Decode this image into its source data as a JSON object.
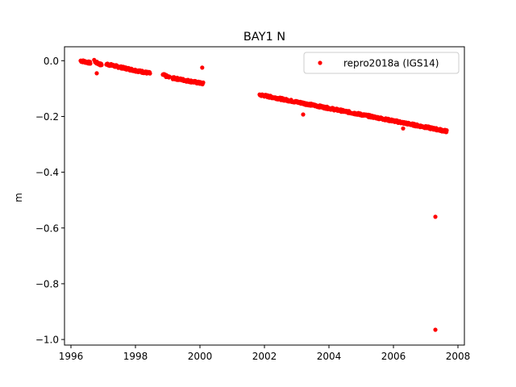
{
  "chart_data": {
    "type": "scatter",
    "title": "BAY1 N",
    "xlabel": "",
    "ylabel": "m",
    "xlim": [
      1995.8,
      2008.2
    ],
    "ylim": [
      -1.02,
      0.05
    ],
    "xticks": [
      1996,
      1998,
      2000,
      2002,
      2004,
      2006,
      2008
    ],
    "xtick_labels": [
      "1996",
      "1998",
      "2000",
      "2002",
      "2004",
      "2006",
      "2008"
    ],
    "yticks": [
      0.0,
      -0.2,
      -0.4,
      -0.6,
      -0.8,
      -1.0
    ],
    "ytick_labels": [
      "0.0",
      "−0.2",
      "−0.4",
      "−0.6",
      "−0.8",
      "−1.0"
    ],
    "grid": false,
    "legend_position": "top-right",
    "series": [
      {
        "name": "repro2018a (IGS14)",
        "color": "#ff0000",
        "marker": "dot",
        "segments": [
          {
            "x_start": 1996.3,
            "x_end": 1996.6,
            "y_start": 0.0,
            "y_end": -0.008
          },
          {
            "x_start": 1996.75,
            "x_end": 1996.95,
            "y_start": -0.005,
            "y_end": -0.015
          },
          {
            "x_start": 1997.1,
            "x_end": 1997.4,
            "y_start": -0.012,
            "y_end": -0.02
          },
          {
            "x_start": 1997.4,
            "x_end": 1998.0,
            "y_start": -0.02,
            "y_end": -0.035
          },
          {
            "x_start": 1998.0,
            "x_end": 1998.45,
            "y_start": -0.035,
            "y_end": -0.045
          },
          {
            "x_start": 1998.85,
            "x_end": 1999.05,
            "y_start": -0.05,
            "y_end": -0.06
          },
          {
            "x_start": 1999.15,
            "x_end": 2000.1,
            "y_start": -0.062,
            "y_end": -0.082
          },
          {
            "x_start": 2001.85,
            "x_end": 2007.65,
            "y_start": -0.122,
            "y_end": -0.253
          }
        ],
        "outliers": [
          {
            "x": 1996.8,
            "y": -0.045
          },
          {
            "x": 1996.72,
            "y": 0.003
          },
          {
            "x": 2000.07,
            "y": -0.025
          },
          {
            "x": 2003.2,
            "y": -0.193
          },
          {
            "x": 2006.3,
            "y": -0.243
          },
          {
            "x": 2007.3,
            "y": -0.56
          },
          {
            "x": 2007.3,
            "y": -0.965
          }
        ]
      }
    ]
  }
}
